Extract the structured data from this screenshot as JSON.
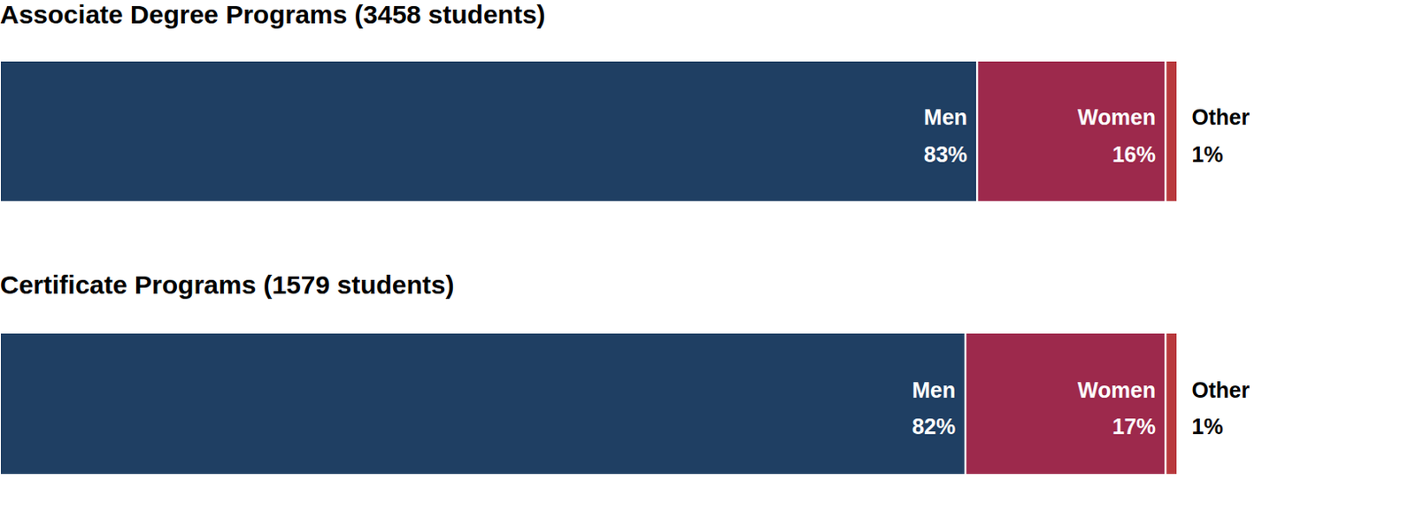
{
  "chart_data": [
    {
      "type": "bar",
      "title": "Associate Degree Programs (3458 students)",
      "orientation": "horizontal",
      "stacked": true,
      "data_labels": true,
      "tick_labels": false,
      "xlim": [
        0,
        100
      ],
      "series": [
        {
          "name": "Men",
          "color": "#1f3f63",
          "values": [
            83
          ],
          "value_labels": [
            "83%"
          ]
        },
        {
          "name": "Women",
          "color": "#9d294c",
          "values": [
            16
          ],
          "value_labels": [
            "16%"
          ]
        },
        {
          "name": "Other",
          "color": "#b8383c",
          "values": [
            1
          ],
          "value_labels": [
            "1%"
          ]
        }
      ]
    },
    {
      "type": "bar",
      "title": "Certificate Programs (1579 students)",
      "orientation": "horizontal",
      "stacked": true,
      "data_labels": true,
      "tick_labels": false,
      "xlim": [
        0,
        100
      ],
      "series": [
        {
          "name": "Men",
          "color": "#1f3f63",
          "values": [
            82
          ],
          "value_labels": [
            "82%"
          ]
        },
        {
          "name": "Women",
          "color": "#9d294c",
          "values": [
            17
          ],
          "value_labels": [
            "17%"
          ]
        },
        {
          "name": "Other",
          "color": "#b8383c",
          "values": [
            1
          ],
          "value_labels": [
            "1%"
          ]
        }
      ]
    }
  ]
}
